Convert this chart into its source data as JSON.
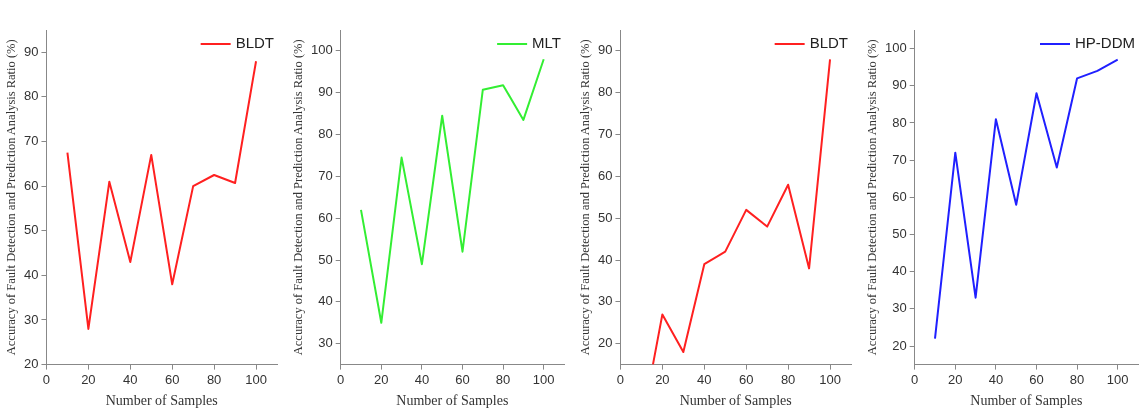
{
  "chart_data": [
    {
      "type": "line",
      "xlabel": "Number of Samples",
      "ylabel": "Accuracy of Fault Detection and Prediction Analysis Ratio (%)",
      "x": [
        10,
        20,
        30,
        40,
        50,
        60,
        70,
        80,
        90,
        100
      ],
      "xlim": [
        0,
        110
      ],
      "xticks": [
        0,
        20,
        40,
        60,
        80,
        100
      ],
      "ylim": [
        20,
        95
      ],
      "yticks": [
        20,
        30,
        40,
        50,
        60,
        70,
        80,
        90
      ],
      "legend": "top right",
      "grid": false,
      "marker": "none",
      "series": [
        {
          "name": "BLDT",
          "color": "#ff2020",
          "values": [
            67.5,
            28,
            61,
            43,
            67,
            38,
            60,
            62.5,
            60.7,
            88
          ]
        }
      ]
    },
    {
      "type": "line",
      "xlabel": "Number of Samples",
      "ylabel": "Accuracy of Fault Detection and Prediction Analysis Ratio (%)",
      "x": [
        10,
        20,
        30,
        40,
        50,
        60,
        70,
        80,
        90,
        100
      ],
      "xlim": [
        0,
        110
      ],
      "xticks": [
        0,
        20,
        40,
        60,
        80,
        100
      ],
      "ylim": [
        25,
        105
      ],
      "yticks": [
        30,
        40,
        50,
        60,
        70,
        80,
        90,
        100
      ],
      "legend": "top right",
      "grid": false,
      "marker": "none",
      "series": [
        {
          "name": "MLT",
          "color": "#33ee33",
          "values": [
            62,
            35,
            74.5,
            49,
            84.5,
            52,
            90.7,
            91.8,
            83.5,
            98
          ]
        }
      ]
    },
    {
      "type": "line",
      "xlabel": "Number of Samples",
      "ylabel": "Accuracy of Fault Detection and Prediction Analysis Ratio (%)",
      "x": [
        15.5,
        20,
        30,
        40,
        50,
        60,
        70,
        80,
        90,
        100
      ],
      "xlim": [
        0,
        110
      ],
      "xticks": [
        0,
        20,
        40,
        60,
        80,
        100
      ],
      "ylim": [
        15,
        95
      ],
      "yticks": [
        20,
        30,
        40,
        50,
        60,
        70,
        80,
        90
      ],
      "legend": "top right",
      "grid": false,
      "marker": "none",
      "series": [
        {
          "name": "BLDT",
          "color": "#ff2020",
          "values": [
            15,
            27,
            18,
            39,
            42,
            52,
            48,
            58,
            38,
            88
          ]
        }
      ]
    },
    {
      "type": "line",
      "xlabel": "Number of Samples",
      "ylabel": "Accuracy of Fault Detection and Prediction Analysis Ratio (%)",
      "x": [
        10,
        20,
        30,
        40,
        50,
        60,
        70,
        80,
        90,
        100
      ],
      "xlim": [
        0,
        110
      ],
      "xticks": [
        0,
        20,
        40,
        60,
        80,
        100
      ],
      "ylim": [
        15,
        105
      ],
      "yticks": [
        20,
        30,
        40,
        50,
        60,
        70,
        80,
        90,
        100
      ],
      "legend": "top right",
      "grid": false,
      "marker": "none",
      "series": [
        {
          "name": "HP-DDM",
          "color": "#2020ff",
          "values": [
            22,
            72,
            33,
            81,
            58,
            88,
            68,
            92,
            94,
            97
          ]
        }
      ]
    }
  ]
}
